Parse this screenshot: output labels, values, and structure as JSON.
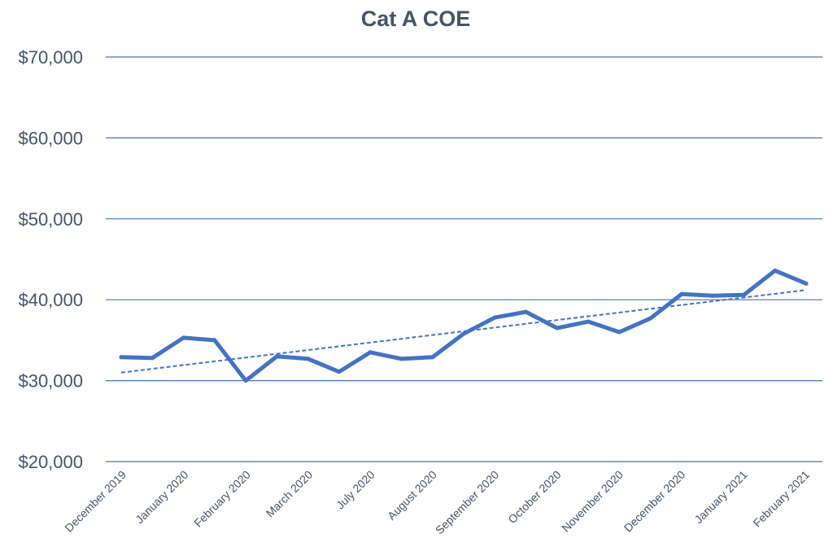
{
  "chart_data": {
    "type": "line",
    "title": "Cat A COE",
    "xlabel": "",
    "ylabel": "",
    "ylim": [
      20000,
      70000
    ],
    "y_ticks": [
      20000,
      30000,
      40000,
      50000,
      60000,
      70000
    ],
    "y_tick_labels": [
      "$20,000",
      "$30,000",
      "$40,000",
      "$50,000",
      "$60,000",
      "$70,000"
    ],
    "grid": "horizontal",
    "legend": "none",
    "x_tick_labels": [
      "December 2019",
      "January 2020",
      "February 2020",
      "March 2020",
      "July 2020",
      "August 2020",
      "September 2020",
      "October 2020",
      "November 2020",
      "December 2020",
      "January 2021",
      "February 2021"
    ],
    "series": [
      {
        "values": [
          32900,
          32800,
          35300,
          35000,
          30000,
          33000,
          32700,
          31100,
          33500,
          32700,
          32900,
          35800,
          37800,
          38500,
          36500,
          37300,
          36000,
          37700,
          40700,
          40500,
          40600,
          43600,
          42000
        ],
        "color": "#4472c4",
        "style": "solid"
      }
    ],
    "trendline": {
      "type": "linear",
      "start": 31000,
      "end": 41200,
      "color": "#4472c4",
      "style": "dashed"
    }
  }
}
